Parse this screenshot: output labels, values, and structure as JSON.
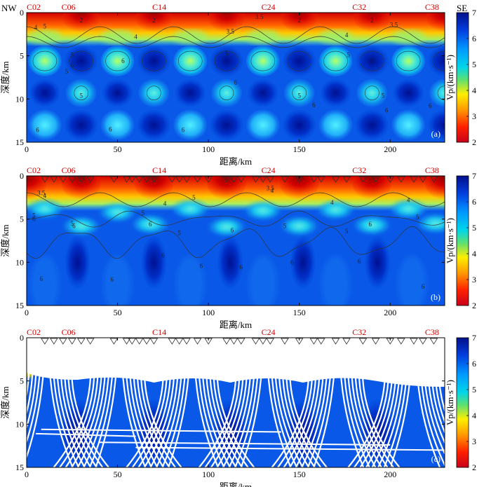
{
  "figure": {
    "direction_left": "NW",
    "direction_right": "SE"
  },
  "chart_data": [
    {
      "type": "heatmap",
      "panel_label": "(a)",
      "description_kind": "checkerboard",
      "xlabel": "距离/km",
      "ylabel": "深度/km",
      "xlim": [
        0,
        230
      ],
      "ylim": [
        15,
        0
      ],
      "xticks": [
        0,
        50,
        100,
        150,
        200
      ],
      "yticks": [
        0,
        5,
        10,
        15
      ],
      "xticklabels": [
        "0",
        "50",
        "100",
        "150",
        "200"
      ],
      "yticklabels": [
        "0",
        "5",
        "10",
        "15"
      ],
      "stations": [
        "C02",
        "C06",
        "C14",
        "C24",
        "C32",
        "C38"
      ],
      "station_km": [
        0,
        23,
        73,
        133,
        183,
        223
      ],
      "contour_labels": [
        "2",
        "3.5",
        "4",
        "5",
        "6"
      ],
      "colorbar": {
        "min": 2,
        "max": 7,
        "ticks": [
          "2",
          "3",
          "4",
          "5",
          "6",
          "7"
        ],
        "label": "Vp/(km·s⁻¹)"
      }
    },
    {
      "type": "heatmap",
      "panel_label": "(b)",
      "description_kind": "recovered",
      "xlabel": "距离/km",
      "ylabel": "深度/km",
      "xlim": [
        0,
        230
      ],
      "ylim": [
        15,
        0
      ],
      "xticks": [
        0,
        50,
        100,
        150,
        200
      ],
      "yticks": [
        0,
        5,
        10,
        15
      ],
      "xticklabels": [
        "0",
        "50",
        "100",
        "150",
        "200"
      ],
      "yticklabels": [
        "0",
        "5",
        "10",
        "15"
      ],
      "stations": [
        "C02",
        "C06",
        "C14",
        "C24",
        "C32",
        "C38"
      ],
      "station_km": [
        0,
        23,
        73,
        133,
        183,
        223
      ],
      "receiver_km": [
        10,
        15,
        20,
        25,
        30,
        35,
        48,
        55,
        58,
        62,
        66,
        70,
        80,
        84,
        88,
        94,
        100,
        110,
        114,
        118,
        126,
        130,
        134,
        142,
        150,
        158,
        162,
        170,
        176,
        185,
        192,
        200,
        206,
        213,
        218,
        224
      ],
      "contour_labels": [
        "3.5",
        "4",
        "5",
        "6"
      ],
      "colorbar": {
        "min": 2,
        "max": 7,
        "ticks": [
          "2",
          "3",
          "4",
          "5",
          "6",
          "7"
        ],
        "label": "Vp/(km·s⁻¹)"
      }
    },
    {
      "type": "heatmap",
      "panel_label": "(c)",
      "description_kind": "ray_coverage",
      "xlabel": "距离/km",
      "ylabel": "深度/km",
      "xlim": [
        0,
        230
      ],
      "ylim": [
        15,
        0
      ],
      "xticks": [
        0,
        50,
        100,
        150,
        200
      ],
      "yticks": [
        0,
        5,
        10,
        15
      ],
      "xticklabels": [
        "0",
        "50",
        "100",
        "150",
        "200"
      ],
      "yticklabels": [
        "0",
        "5",
        "10",
        "15"
      ],
      "stations": [
        "C02",
        "C06",
        "C14",
        "C24",
        "C32",
        "C38"
      ],
      "station_km": [
        0,
        23,
        73,
        133,
        183,
        223
      ],
      "receiver_km": [
        10,
        15,
        20,
        25,
        30,
        35,
        48,
        55,
        58,
        62,
        66,
        70,
        80,
        84,
        88,
        94,
        100,
        110,
        114,
        118,
        126,
        130,
        134,
        142,
        150,
        158,
        162,
        170,
        176,
        185,
        192,
        200,
        206,
        213,
        218,
        224
      ],
      "colorbar": {
        "min": 2,
        "max": 7,
        "ticks": [
          "2",
          "3",
          "4",
          "5",
          "6",
          "7"
        ],
        "label": "Vp/(km·s⁻¹)"
      }
    }
  ]
}
